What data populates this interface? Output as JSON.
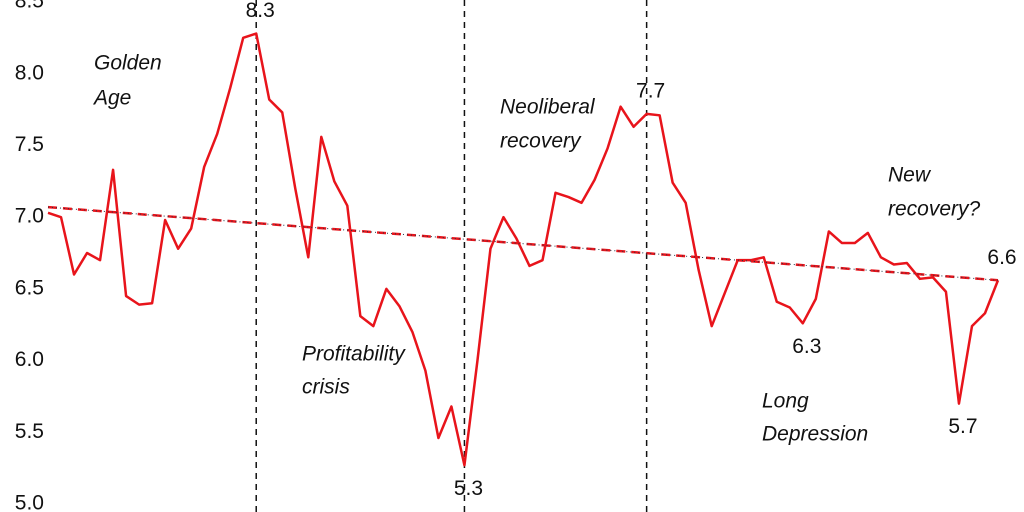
{
  "chart_data": {
    "type": "line",
    "values": [
      7.03,
      7.0,
      6.6,
      6.75,
      6.7,
      7.33,
      6.45,
      6.39,
      6.4,
      6.98,
      6.78,
      6.92,
      7.35,
      7.58,
      7.9,
      8.25,
      8.28,
      7.82,
      7.73,
      7.2,
      6.72,
      7.56,
      7.25,
      7.08,
      6.31,
      6.24,
      6.5,
      6.38,
      6.2,
      5.93,
      5.46,
      5.68,
      5.27,
      6.0,
      6.78,
      7.0,
      6.85,
      6.66,
      6.7,
      7.17,
      7.14,
      7.1,
      7.26,
      7.48,
      7.77,
      7.63,
      7.72,
      7.71,
      7.24,
      7.1,
      6.63,
      6.24,
      6.47,
      6.7,
      6.7,
      6.72,
      6.41,
      6.37,
      6.26,
      6.43,
      6.9,
      6.82,
      6.82,
      6.89,
      6.72,
      6.67,
      6.68,
      6.57,
      6.58,
      6.48,
      5.7,
      6.24,
      6.33,
      6.56
    ],
    "value_labels": [
      null,
      null,
      null,
      null,
      null,
      null,
      null,
      null,
      null,
      null,
      null,
      null,
      null,
      null,
      null,
      null,
      "8.3",
      null,
      null,
      null,
      null,
      null,
      null,
      null,
      null,
      null,
      null,
      null,
      null,
      null,
      null,
      null,
      "5.3",
      null,
      null,
      null,
      null,
      null,
      null,
      null,
      null,
      null,
      null,
      null,
      null,
      null,
      "7.7",
      null,
      null,
      null,
      null,
      null,
      null,
      null,
      null,
      null,
      null,
      null,
      "6.3",
      null,
      null,
      null,
      null,
      null,
      null,
      null,
      null,
      null,
      null,
      null,
      "5.7",
      null,
      null,
      "6.6"
    ],
    "color": "#e8141b",
    "ylim": [
      5.0,
      8.5
    ],
    "yticks": [
      {
        "value": 5,
        "label": "5.0"
      },
      5.5,
      {
        "value": 6,
        "label": "6.0"
      },
      6.5,
      {
        "value": 7,
        "label": "7.0"
      },
      7.5,
      {
        "value": 8,
        "label": "8.0"
      },
      8.5
    ],
    "dividers": [
      16,
      32,
      46
    ],
    "trend": {
      "start": 7.07,
      "end": 6.56,
      "color": "#e8141b"
    },
    "annotations": [
      [
        "Golden",
        "Age"
      ],
      [
        "Profitability",
        "crisis"
      ],
      [
        "Neoliberal",
        "recovery"
      ],
      [
        "Long",
        "Depression"
      ],
      [
        "New",
        "recovery?"
      ]
    ]
  }
}
